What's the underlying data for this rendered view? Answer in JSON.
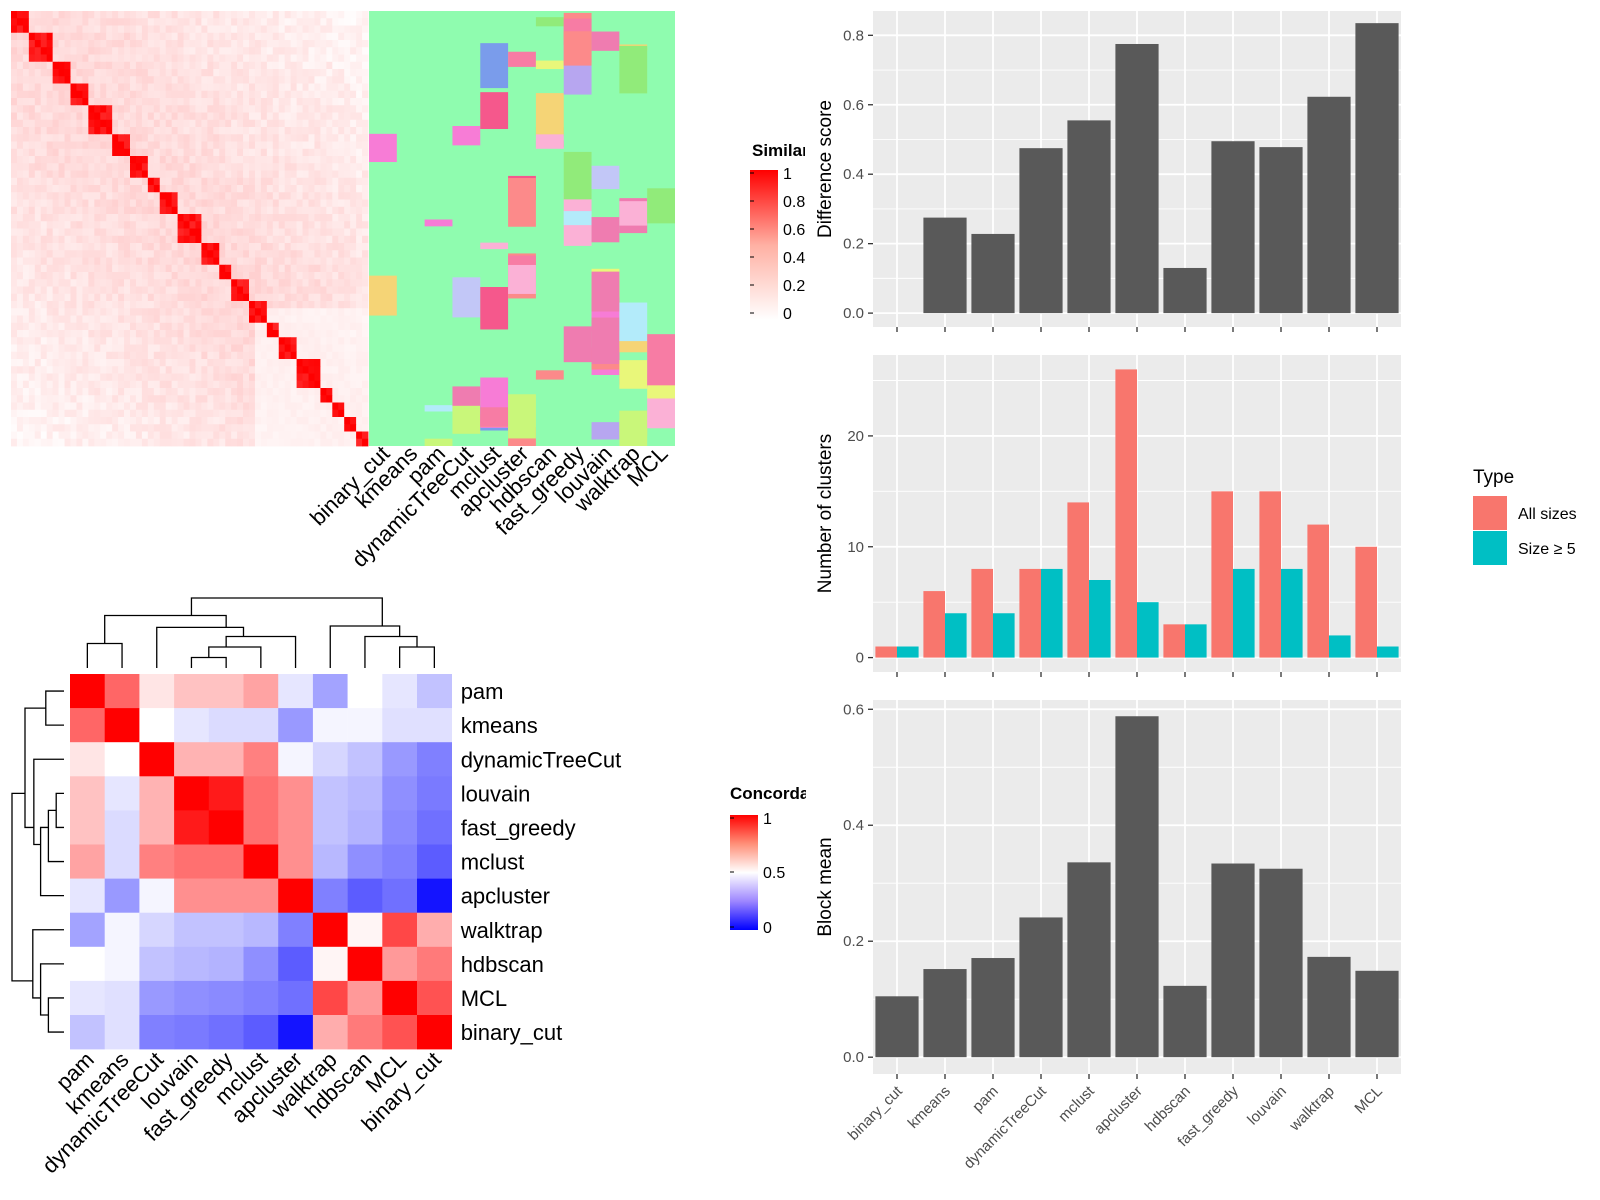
{
  "methods": [
    "binary_cut",
    "kmeans",
    "pam",
    "dynamicTreeCut",
    "mclust",
    "apcluster",
    "hdbscan",
    "fast_greedy",
    "louvain",
    "walktrap",
    "MCL"
  ],
  "similarity_panel": {
    "legend_title": "Similarity",
    "legend_ticks": [
      "1",
      "0.8",
      "0.6",
      "0.4",
      "0.2",
      "0"
    ],
    "colors": {
      "high": "#ff0000",
      "low": "#ffffff",
      "background": "#8ffcaf"
    },
    "partition_palette": [
      "#91eb7a",
      "#fbb1d6",
      "#f77ca4",
      "#f77cd6",
      "#fc8a8a",
      "#c9f77a",
      "#b3ebfa",
      "#f5588c",
      "#b7a6f0",
      "#c2c7f7",
      "#ef7cb0",
      "#f5d476",
      "#e9f77a",
      "#7a9ceb"
    ]
  },
  "concordance_panel": {
    "legend_title": "Concordance",
    "legend_ticks": [
      "1",
      "0.5",
      "0"
    ],
    "colors": {
      "high": "#ff0000",
      "mid": "#ffffff",
      "low": "#0000ff"
    },
    "order": [
      "pam",
      "kmeans",
      "dynamicTreeCut",
      "louvain",
      "fast_greedy",
      "mclust",
      "apcluster",
      "walktrap",
      "hdbscan",
      "MCL",
      "binary_cut"
    ],
    "matrix": [
      [
        1.0,
        0.8,
        0.55,
        0.62,
        0.62,
        0.68,
        0.45,
        0.32,
        0.5,
        0.45,
        0.38
      ],
      [
        0.8,
        1.0,
        0.5,
        0.45,
        0.43,
        0.43,
        0.3,
        0.48,
        0.48,
        0.44,
        0.44
      ],
      [
        0.55,
        0.5,
        1.0,
        0.65,
        0.65,
        0.75,
        0.48,
        0.42,
        0.38,
        0.3,
        0.25
      ],
      [
        0.62,
        0.45,
        0.65,
        1.0,
        0.95,
        0.78,
        0.72,
        0.38,
        0.36,
        0.28,
        0.24
      ],
      [
        0.62,
        0.43,
        0.65,
        0.95,
        1.0,
        0.78,
        0.72,
        0.38,
        0.35,
        0.27,
        0.22
      ],
      [
        0.68,
        0.43,
        0.75,
        0.78,
        0.78,
        1.0,
        0.72,
        0.36,
        0.28,
        0.25,
        0.18
      ],
      [
        0.45,
        0.3,
        0.48,
        0.72,
        0.72,
        0.72,
        1.0,
        0.25,
        0.18,
        0.22,
        0.04
      ],
      [
        0.32,
        0.48,
        0.42,
        0.38,
        0.38,
        0.36,
        0.25,
        1.0,
        0.52,
        0.86,
        0.66
      ],
      [
        0.5,
        0.48,
        0.38,
        0.36,
        0.35,
        0.28,
        0.18,
        0.52,
        1.0,
        0.7,
        0.76
      ],
      [
        0.45,
        0.44,
        0.3,
        0.28,
        0.27,
        0.25,
        0.22,
        0.86,
        0.7,
        1.0,
        0.84
      ],
      [
        0.38,
        0.44,
        0.25,
        0.24,
        0.22,
        0.18,
        0.04,
        0.66,
        0.76,
        0.84,
        1.0
      ]
    ]
  },
  "chart_data": [
    {
      "type": "bar",
      "ylabel": "Difference score",
      "categories": [
        "binary_cut",
        "kmeans",
        "pam",
        "dynamicTreeCut",
        "mclust",
        "apcluster",
        "hdbscan",
        "fast_greedy",
        "louvain",
        "walktrap",
        "MCL"
      ],
      "values": [
        0,
        0.275,
        0.228,
        0.475,
        0.555,
        0.775,
        0.13,
        0.495,
        0.478,
        0.623,
        0.835
      ],
      "ylim": [
        -0.04,
        0.87
      ],
      "yticks": [
        "0.0",
        "0.2",
        "0.4",
        "0.6",
        "0.8"
      ],
      "bar_color": "#595959"
    },
    {
      "type": "bar",
      "ylabel": "Number of clusters",
      "categories": [
        "binary_cut",
        "kmeans",
        "pam",
        "dynamicTreeCut",
        "mclust",
        "apcluster",
        "hdbscan",
        "fast_greedy",
        "louvain",
        "walktrap",
        "MCL"
      ],
      "series": [
        {
          "name": "All sizes",
          "color": "#f8766d",
          "values": [
            1,
            6,
            8,
            8,
            14,
            26,
            3,
            15,
            15,
            12,
            10
          ]
        },
        {
          "name": "Size ≥ 5",
          "color": "#00bfc4",
          "values": [
            1,
            4,
            4,
            8,
            7,
            5,
            3,
            8,
            8,
            2,
            1
          ]
        }
      ],
      "legend_title": "Type",
      "legend_position": "right",
      "ylim": [
        -1.3,
        27.3
      ],
      "yticks": [
        "0",
        "10",
        "20"
      ]
    },
    {
      "type": "bar",
      "ylabel": "Block mean",
      "categories": [
        "binary_cut",
        "kmeans",
        "pam",
        "dynamicTreeCut",
        "mclust",
        "apcluster",
        "hdbscan",
        "fast_greedy",
        "louvain",
        "walktrap",
        "MCL"
      ],
      "values": [
        0.105,
        0.152,
        0.171,
        0.241,
        0.336,
        0.588,
        0.123,
        0.334,
        0.325,
        0.173,
        0.149
      ],
      "ylim": [
        -0.029,
        0.616
      ],
      "yticks": [
        "0.0",
        "0.2",
        "0.4",
        "0.6"
      ],
      "bar_color": "#595959"
    }
  ]
}
